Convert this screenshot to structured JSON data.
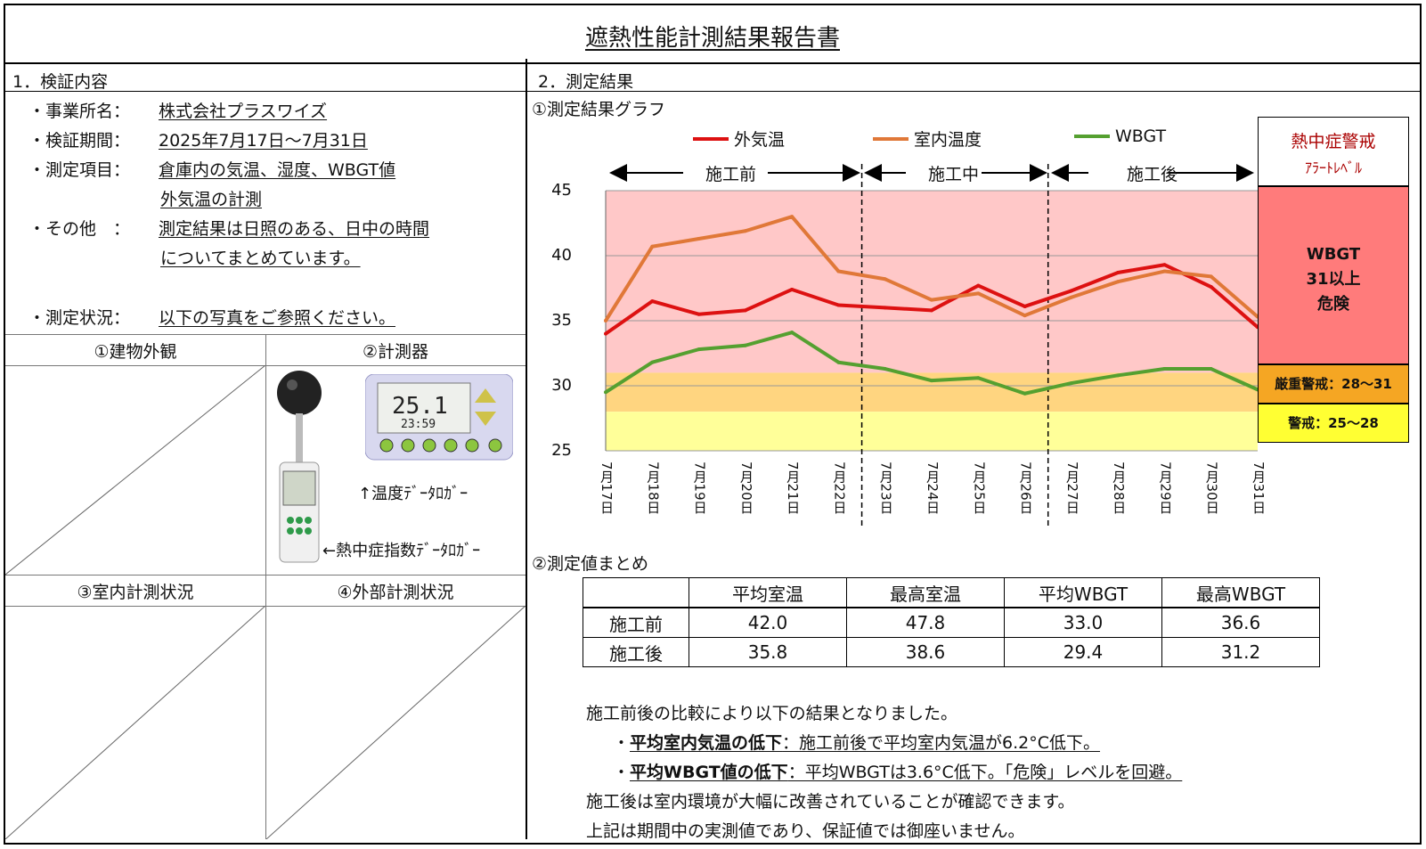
{
  "title": "遮熱性能計測結果報告書",
  "section1": {
    "heading": "1．検証内容",
    "rows": [
      {
        "label": "・事業所名：",
        "value": "株式会社プラスワイズ"
      },
      {
        "label": "・検証期間：",
        "value": "2025年7月17日～7月31日"
      },
      {
        "label": "・測定項目：",
        "value": "倉庫内の気温、湿度、WBGT値",
        "cont": "外気温の計測"
      },
      {
        "label": "・その他　：",
        "value": "測定結果は日照のある、日中の時間",
        "cont": "についてまとめています。"
      },
      {
        "label": "・測定状況：",
        "value": "以下の写真をご参照ください。"
      }
    ],
    "photos": {
      "p1": "①建物外観",
      "p2": "②計測器",
      "p3": "③室内計測状況",
      "p4": "④外部計測状況",
      "note_temp": "↑温度ﾃﾞｰﾀﾛｶﾞｰ",
      "note_wbgt": "←熱中症指数ﾃﾞｰﾀﾛｶﾞｰ",
      "device_display1": "25.1",
      "device_display2": "23:59"
    }
  },
  "section2": {
    "heading": "2．測定結果",
    "graph_title": "①測定結果グラフ",
    "phases": [
      "施工前",
      "施工中",
      "施工後"
    ],
    "alert": {
      "title": "熱中症警戒",
      "subtitle": "ｱﾗｰﾄﾚﾍﾞﾙ",
      "danger_line1": "WBGT",
      "danger_line2": "31以上",
      "danger_line3": "危険",
      "severe": "厳重警戒：28～31",
      "warning": "警戒：25～28"
    },
    "summary_title": "②測定値まとめ",
    "summary": {
      "headers": [
        "",
        "平均室温",
        "最高室温",
        "平均WBGT",
        "最高WBGT"
      ],
      "rows": [
        [
          "施工前",
          "42.0",
          "47.8",
          "33.0",
          "36.6"
        ],
        [
          "施工後",
          "35.8",
          "38.6",
          "29.4",
          "31.2"
        ]
      ]
    },
    "conclusion": {
      "intro": "施工前後の比較により以下の結果となりました。",
      "p1_bold": "平均室内気温の低下",
      "p1_text": "：施工前後で平均室内気温が6.2°C低下。",
      "p2_bold": "平均WBGT値の低下",
      "p2_text": "：平均WBGTは3.6°C低下。「危険」レベルを回避。",
      "line3": "施工後は室内環境が大幅に改善されていることが確認できます。",
      "line4": "上記は期間中の実測値であり、保証値では御座いません。"
    }
  },
  "chart_data": {
    "type": "line",
    "categories": [
      "7月17日",
      "7月18日",
      "7月19日",
      "7月20日",
      "7月21日",
      "7月22日",
      "7月23日",
      "7月24日",
      "7月25日",
      "7月26日",
      "7月27日",
      "7月28日",
      "7月29日",
      "7月30日",
      "7月31日"
    ],
    "series": [
      {
        "name": "外気温",
        "color": "#dd1111",
        "values": [
          34.0,
          36.5,
          35.5,
          35.8,
          37.4,
          36.2,
          36.0,
          35.8,
          37.7,
          36.1,
          37.3,
          38.7,
          39.3,
          37.6,
          34.5
        ]
      },
      {
        "name": "室内温度",
        "color": "#e07838",
        "values": [
          35.0,
          40.7,
          41.3,
          41.9,
          43.0,
          38.8,
          38.2,
          36.6,
          37.1,
          35.4,
          36.8,
          38.0,
          38.8,
          38.4,
          35.3
        ]
      },
      {
        "name": "WBGT",
        "color": "#55a030",
        "values": [
          29.5,
          31.8,
          32.8,
          33.1,
          34.1,
          31.8,
          31.3,
          30.4,
          30.6,
          29.4,
          30.2,
          30.8,
          31.3,
          31.3,
          29.7
        ]
      }
    ],
    "yticks": [
      25,
      30,
      35,
      40,
      45
    ],
    "ylim": [
      25,
      45
    ],
    "bands": [
      {
        "from": 31,
        "to": 45,
        "color": "#ffc8c8"
      },
      {
        "from": 28,
        "to": 31,
        "color": "#ffd580"
      },
      {
        "from": 25,
        "to": 28,
        "color": "#ffff99"
      }
    ]
  }
}
